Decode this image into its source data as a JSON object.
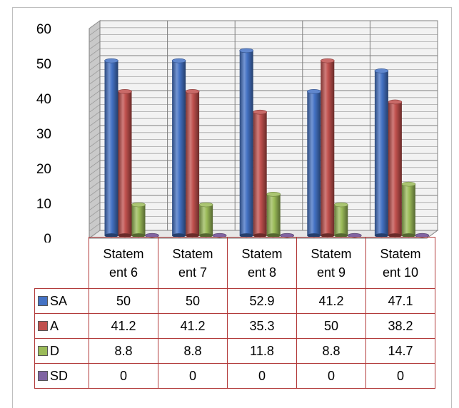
{
  "chart_data": {
    "type": "bar",
    "categories": [
      "Statem\nent 6",
      "Statem\nent 7",
      "Statem\nent 8",
      "Statem\nent 9",
      "Statem\nent 10"
    ],
    "category_lines": [
      [
        "Statem",
        "ent 6"
      ],
      [
        "Statem",
        "ent 7"
      ],
      [
        "Statem",
        "ent 8"
      ],
      [
        "Statem",
        "ent 9"
      ],
      [
        "Statem",
        "ent 10"
      ]
    ],
    "series": [
      {
        "name": "SA",
        "color": "#4472c4",
        "values": [
          50,
          50,
          52.9,
          41.2,
          47.1
        ],
        "labels": [
          "50",
          "50",
          "52.9",
          "41.2",
          "47.1"
        ]
      },
      {
        "name": "A",
        "color": "#c0504d",
        "values": [
          41.2,
          41.2,
          35.3,
          50,
          38.2
        ],
        "labels": [
          "41.2",
          "41.2",
          "35.3",
          "50",
          "38.2"
        ]
      },
      {
        "name": "D",
        "color": "#9bbb59",
        "values": [
          8.8,
          8.8,
          11.8,
          8.8,
          14.7
        ],
        "labels": [
          "8.8",
          "8.8",
          "11.8",
          "8.8",
          "14.7"
        ]
      },
      {
        "name": "SD",
        "color": "#8064a2",
        "values": [
          0,
          0,
          0,
          0,
          0
        ],
        "labels": [
          "0",
          "0",
          "0",
          "0",
          "0"
        ]
      }
    ],
    "ylim": [
      0,
      60
    ],
    "yticks": [
      "0",
      "10",
      "20",
      "30",
      "40",
      "50",
      "60"
    ],
    "grid": true,
    "legend": "data-table",
    "style": "3d-cylinder"
  }
}
